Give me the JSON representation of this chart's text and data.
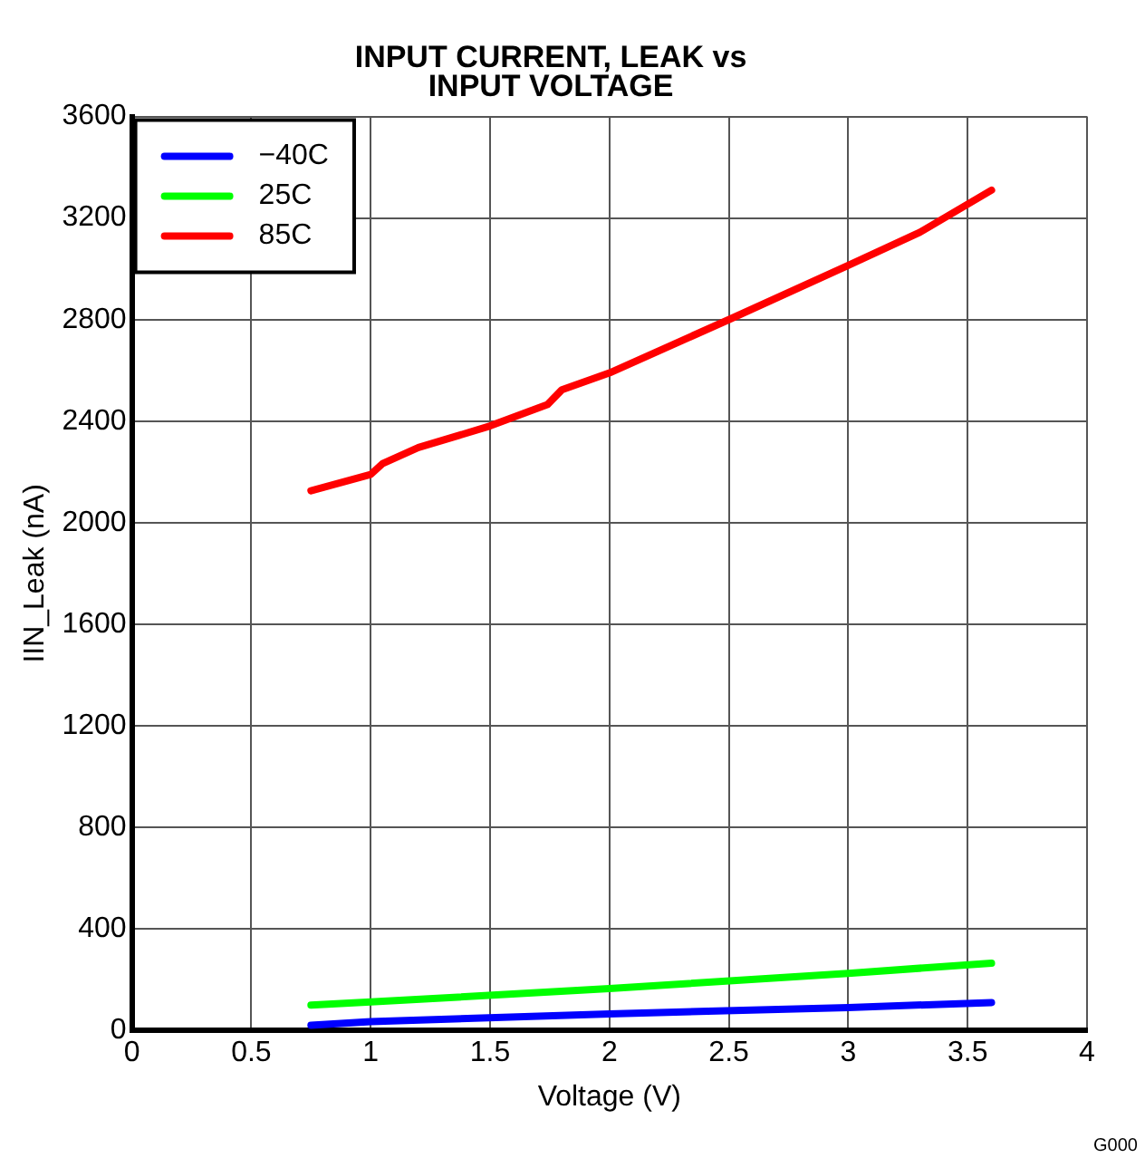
{
  "chart_data": {
    "type": "line",
    "title": "INPUT CURRENT, LEAK vs\nINPUT VOLTAGE",
    "xlabel": "Voltage (V)",
    "ylabel": "IIN_Leak (nA)",
    "annotations": [
      "G000"
    ],
    "series": [
      {
        "name": "−40C",
        "color": "#0000ff",
        "x": [
          0.75,
          1,
          2,
          3,
          3.6
        ],
        "values": [
          20,
          35,
          65,
          90,
          110
        ]
      },
      {
        "name": "25C",
        "color": "#00ff00",
        "x": [
          0.75,
          1,
          2,
          3,
          3.6
        ],
        "values": [
          100,
          112,
          165,
          225,
          265
        ]
      },
      {
        "name": "85C",
        "color": "#ff0000",
        "x": [
          0.75,
          1,
          1.05,
          1.2,
          1.5,
          1.74,
          1.8,
          2,
          2.5,
          3,
          3.3,
          3.6
        ],
        "values": [
          2126,
          2190,
          2233,
          2296,
          2381,
          2465,
          2523,
          2590,
          2800,
          3014,
          3144,
          3310
        ]
      }
    ],
    "xlim": [
      0,
      4
    ],
    "xticks": [
      0,
      0.5,
      1,
      1.5,
      2,
      2.5,
      3,
      3.5,
      4
    ],
    "ylim": [
      0,
      3600
    ],
    "yticks": [
      0,
      400,
      800,
      1200,
      1600,
      2000,
      2400,
      2800,
      3200,
      3600
    ],
    "grid": true,
    "legend": "top left",
    "marker": "none",
    "line_style": "solid"
  }
}
